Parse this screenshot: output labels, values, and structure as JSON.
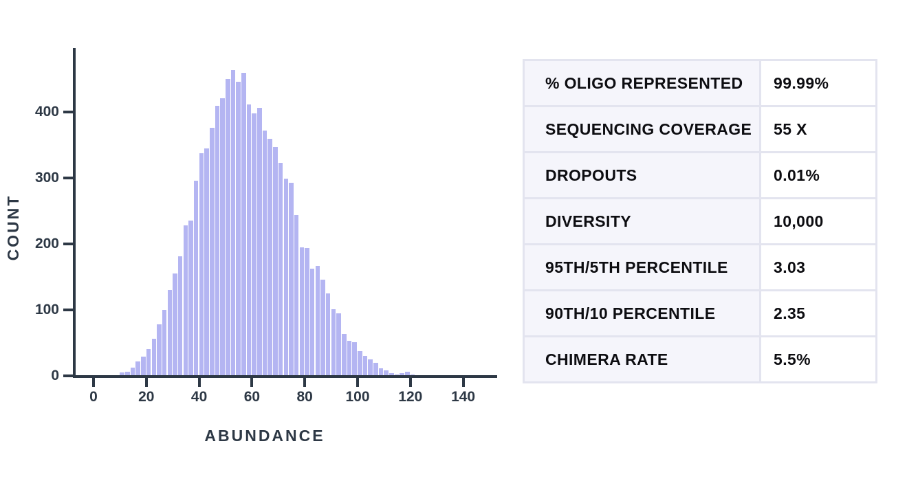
{
  "chart": {
    "ylabel": "COUNT",
    "xlabel": "ABUNDANCE",
    "x_ticks": [
      0,
      20,
      40,
      60,
      80,
      100,
      120,
      140
    ],
    "y_ticks": [
      0,
      100,
      200,
      300,
      400
    ]
  },
  "chart_data": {
    "type": "bar",
    "xlabel": "ABUNDANCE",
    "ylabel": "COUNT",
    "bin_width": 2,
    "bin_left_edges": [
      10,
      12,
      14,
      16,
      18,
      20,
      22,
      24,
      26,
      28,
      30,
      32,
      34,
      36,
      38,
      40,
      42,
      44,
      46,
      48,
      50,
      52,
      54,
      56,
      58,
      60,
      62,
      64,
      66,
      68,
      70,
      72,
      74,
      76,
      78,
      80,
      82,
      84,
      86,
      88,
      90,
      92,
      94,
      96,
      98,
      100,
      102,
      104,
      106,
      108,
      110,
      112,
      114,
      116,
      118,
      120,
      122
    ],
    "values": [
      5,
      6,
      13,
      22,
      29,
      41,
      56,
      78,
      100,
      130,
      155,
      181,
      228,
      235,
      296,
      338,
      345,
      376,
      409,
      421,
      450,
      464,
      446,
      459,
      411,
      398,
      406,
      372,
      359,
      347,
      323,
      299,
      293,
      244,
      195,
      194,
      163,
      167,
      146,
      125,
      101,
      95,
      64,
      53,
      51,
      38,
      30,
      25,
      20,
      12,
      8,
      4,
      2,
      4,
      6,
      2,
      1
    ],
    "x_ticks": [
      0,
      20,
      40,
      60,
      80,
      100,
      120,
      140
    ],
    "y_ticks": [
      0,
      100,
      200,
      300,
      400
    ],
    "xlim": [
      0,
      154
    ],
    "ylim": [
      0,
      470
    ],
    "grid": false,
    "legend": "none",
    "bar_color": "#b4b5f2"
  },
  "stats_table": {
    "rows": [
      {
        "label": "% OLIGO REPRESENTED",
        "value": "99.99%"
      },
      {
        "label": "SEQUENCING COVERAGE",
        "value": "55 X"
      },
      {
        "label": "DROPOUTS",
        "value": "0.01%"
      },
      {
        "label": "DIVERSITY",
        "value": "10,000"
      },
      {
        "label": "95TH/5TH PERCENTILE",
        "value": "3.03"
      },
      {
        "label": "90TH/10 PERCENTILE",
        "value": "2.35"
      },
      {
        "label": "CHIMERA RATE",
        "value": "5.5%"
      }
    ]
  },
  "colors": {
    "bar": "#b4b5f2",
    "axis": "#2d3845",
    "table_border": "#e3e4ef",
    "table_label_bg": "#f5f5fb",
    "table_value_bg": "#ffffff",
    "table_text": "#0d0d11"
  }
}
